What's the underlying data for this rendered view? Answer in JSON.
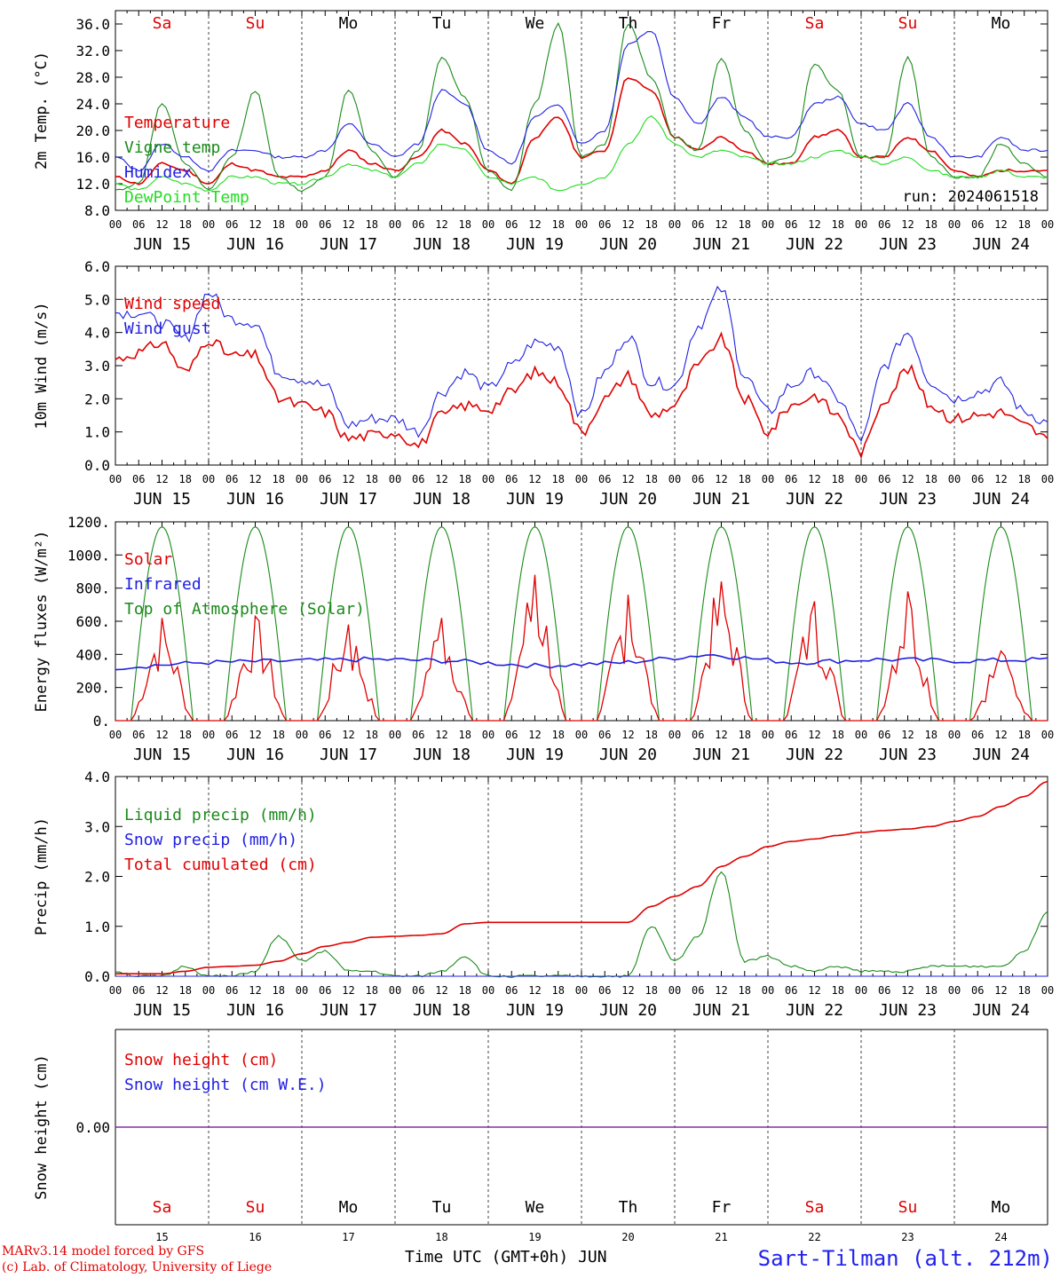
{
  "credits": {
    "line1": "MARv3.14 model forced by GFS",
    "line2": "(c) Lab. of Climatology, University of Liege"
  },
  "station": "Sart-Tilman (alt. 212m)",
  "x_axis_title": "Time UTC (GMT+0h) JUN",
  "run_label": "run: 2024061518",
  "colors": {
    "red": "#e00000",
    "green": "#1a8a1a",
    "blue": "#2020e0",
    "lightgreen": "#22dd22",
    "purple": "#8030a0"
  },
  "weekdays": [
    "Sa",
    "Su",
    "Mo",
    "Tu",
    "We",
    "Th",
    "Fr",
    "Sa",
    "Su",
    "Mo"
  ],
  "weekday_colors": [
    "red",
    "red",
    "black",
    "black",
    "black",
    "black",
    "black",
    "red",
    "red",
    "black"
  ],
  "dates": [
    "JUN 15",
    "JUN 16",
    "JUN 17",
    "JUN 18",
    "JUN 19",
    "JUN 20",
    "JUN 21",
    "JUN 22",
    "JUN 23",
    "JUN 24"
  ],
  "day_numbers": [
    "15",
    "16",
    "17",
    "18",
    "19",
    "20",
    "21",
    "22",
    "23",
    "24"
  ],
  "hour_ticks": [
    "00",
    "06",
    "12",
    "18"
  ],
  "chart_data": [
    {
      "type": "line",
      "ylabel": "2m Temp. (°C)",
      "ylim": [
        8,
        38
      ],
      "yticks": [
        "8.0",
        "12.0",
        "16.0",
        "20.0",
        "24.0",
        "28.0",
        "32.0",
        "36.0"
      ],
      "x_hours": [
        0,
        6,
        12,
        18,
        24,
        30,
        36,
        42,
        48,
        54,
        60,
        66,
        72,
        78,
        84,
        90,
        96,
        102,
        108,
        114,
        120,
        126,
        132,
        138,
        144,
        150,
        156,
        162,
        168,
        174,
        180,
        186,
        192,
        198,
        204,
        210,
        216,
        222,
        228,
        234,
        240
      ],
      "series": [
        {
          "name": "Temperature",
          "color": "red",
          "values": [
            13,
            12,
            15,
            14,
            12,
            15,
            14,
            13,
            13,
            14,
            17,
            15,
            14,
            16,
            20,
            18,
            14,
            12,
            19,
            22,
            16,
            17,
            28,
            26,
            19,
            17,
            19,
            17,
            15,
            15,
            19,
            20,
            16,
            16,
            19,
            17,
            14,
            13,
            14,
            14,
            14
          ]
        },
        {
          "name": "Vigne temp",
          "color": "green",
          "values": [
            11,
            12,
            24,
            15,
            11,
            16,
            26,
            13,
            11,
            13,
            26,
            17,
            13,
            17,
            31,
            25,
            14,
            11,
            24,
            36,
            16,
            18,
            36,
            28,
            19,
            17,
            31,
            20,
            15,
            16,
            30,
            26,
            16,
            16,
            31,
            16,
            13,
            13,
            18,
            15,
            13
          ]
        },
        {
          "name": "Humidex",
          "color": "blue",
          "values": [
            16,
            14,
            18,
            16,
            14,
            17,
            17,
            16,
            16,
            17,
            21,
            18,
            16,
            18,
            26,
            24,
            17,
            15,
            22,
            24,
            18,
            20,
            33,
            35,
            25,
            21,
            25,
            22,
            19,
            19,
            24,
            25,
            21,
            20,
            24,
            19,
            16,
            16,
            19,
            17,
            17
          ]
        },
        {
          "name": "DewPoint Temp",
          "color": "lightgreen",
          "values": [
            12,
            11,
            13,
            12,
            11,
            13,
            13,
            12,
            12,
            13,
            15,
            14,
            13,
            15,
            18,
            17,
            13,
            12,
            13,
            11,
            12,
            13,
            18,
            22,
            18,
            16,
            17,
            16,
            15,
            15,
            16,
            17,
            16,
            15,
            16,
            14,
            13,
            13,
            14,
            13,
            13
          ]
        }
      ]
    },
    {
      "type": "line",
      "ylabel": "10m Wind (m/s)",
      "ylim": [
        0,
        6
      ],
      "yticks": [
        "0.0",
        "1.0",
        "2.0",
        "3.0",
        "4.0",
        "5.0",
        "6.0"
      ],
      "x_hours": [
        0,
        6,
        12,
        18,
        24,
        30,
        36,
        42,
        48,
        54,
        60,
        66,
        72,
        78,
        84,
        90,
        96,
        102,
        108,
        114,
        120,
        126,
        132,
        138,
        144,
        150,
        156,
        162,
        168,
        174,
        180,
        186,
        192,
        198,
        204,
        210,
        216,
        222,
        228,
        234,
        240
      ],
      "series": [
        {
          "name": "Wind speed",
          "color": "red",
          "values": [
            3.2,
            3.4,
            3.7,
            2.8,
            3.8,
            3.3,
            3.3,
            2.0,
            1.8,
            1.6,
            0.8,
            0.9,
            1.0,
            0.6,
            1.5,
            1.8,
            1.7,
            2.2,
            2.8,
            2.5,
            1.0,
            2.0,
            2.7,
            1.5,
            1.8,
            3.0,
            3.8,
            2.0,
            1.0,
            1.8,
            2.1,
            1.5,
            0.4,
            2.0,
            2.9,
            1.8,
            1.4,
            1.5,
            1.6,
            1.2,
            0.8
          ]
        },
        {
          "name": "Wind gust",
          "color": "blue",
          "values": [
            4.6,
            4.6,
            4.3,
            3.8,
            5.2,
            4.4,
            4.3,
            2.8,
            2.6,
            2.4,
            1.2,
            1.4,
            1.4,
            1.0,
            2.2,
            2.8,
            2.3,
            3.0,
            3.7,
            3.6,
            1.5,
            2.8,
            3.9,
            2.5,
            2.4,
            4.2,
            5.3,
            2.7,
            1.6,
            2.4,
            2.8,
            2.0,
            0.8,
            3.0,
            4.0,
            2.5,
            2.0,
            2.2,
            2.5,
            1.6,
            1.3
          ]
        }
      ],
      "reference_line": 5.0
    },
    {
      "type": "line",
      "ylabel": "Energy fluxes (W/m²)",
      "ylim": [
        0,
        1200
      ],
      "yticks": [
        "0.",
        "200.",
        "400.",
        "600.",
        "800.",
        "1000.",
        "1200."
      ],
      "series": [
        {
          "name": "Solar",
          "color": "red",
          "daily_peaks": [
            620,
            630,
            580,
            620,
            880,
            760,
            840,
            720,
            780,
            420
          ]
        },
        {
          "name": "Infrared",
          "color": "blue",
          "values_hourly_mean": [
            320,
            350,
            360,
            370,
            360,
            330,
            350,
            400,
            350,
            370,
            360,
            370
          ]
        },
        {
          "name": "Top of Atmosphere (Solar)",
          "color": "green",
          "daily_peak": 1170
        }
      ]
    },
    {
      "type": "line",
      "ylabel": "Precip (mm/h)",
      "ylim": [
        0,
        4
      ],
      "yticks": [
        "0.0",
        "1.0",
        "2.0",
        "3.0",
        "4.0"
      ],
      "x_hours": [
        0,
        6,
        12,
        18,
        24,
        30,
        36,
        42,
        48,
        54,
        60,
        66,
        72,
        78,
        84,
        90,
        96,
        102,
        108,
        114,
        120,
        126,
        132,
        138,
        144,
        150,
        156,
        162,
        168,
        174,
        180,
        186,
        192,
        198,
        204,
        210,
        216,
        222,
        228,
        234,
        240
      ],
      "series": [
        {
          "name": "Liquid precip (mm/h)",
          "color": "green",
          "values": [
            0.1,
            0,
            0,
            0.2,
            0,
            0,
            0.1,
            0.8,
            0.3,
            0.5,
            0.1,
            0.1,
            0,
            0,
            0.1,
            0.4,
            0,
            0,
            0,
            0,
            0,
            0,
            0,
            1.0,
            0.3,
            0.8,
            2.1,
            0.3,
            0.4,
            0.2,
            0.1,
            0.2,
            0.1,
            0.1,
            0.1,
            0.2,
            0.2,
            0.2,
            0.2,
            0.5,
            1.3
          ]
        },
        {
          "name": "Snow precip (mm/h)",
          "color": "blue",
          "values": [
            0,
            0,
            0,
            0,
            0,
            0,
            0,
            0,
            0,
            0,
            0,
            0,
            0,
            0,
            0,
            0,
            0,
            0,
            0,
            0,
            0,
            0,
            0,
            0,
            0,
            0,
            0,
            0,
            0,
            0,
            0,
            0,
            0,
            0,
            0,
            0,
            0,
            0,
            0,
            0,
            0
          ]
        },
        {
          "name": "Total cumulated (cm)",
          "color": "red",
          "values": [
            0.05,
            0.05,
            0.05,
            0.1,
            0.18,
            0.2,
            0.22,
            0.3,
            0.45,
            0.6,
            0.68,
            0.78,
            0.8,
            0.82,
            0.85,
            1.05,
            1.08,
            1.08,
            1.08,
            1.08,
            1.08,
            1.08,
            1.08,
            1.4,
            1.6,
            1.8,
            2.2,
            2.4,
            2.6,
            2.7,
            2.75,
            2.82,
            2.88,
            2.92,
            2.95,
            3.0,
            3.1,
            3.2,
            3.4,
            3.6,
            3.9
          ]
        }
      ]
    },
    {
      "type": "line",
      "ylabel": "Snow height (cm)",
      "yticks": [
        "0.00"
      ],
      "series": [
        {
          "name": "Snow height (cm)",
          "color": "red",
          "values": [
            0
          ]
        },
        {
          "name": "Snow height (cm W.E.)",
          "color": "blue",
          "values": [
            0
          ]
        }
      ]
    }
  ]
}
